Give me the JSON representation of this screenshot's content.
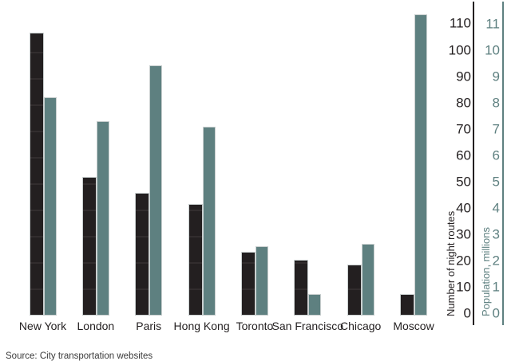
{
  "chart_data": {
    "type": "bar",
    "title": "",
    "categories": [
      "New York",
      "London",
      "Paris",
      "Hong Kong",
      "Toronto",
      "San Francisco",
      "Chicago",
      "Moscow"
    ],
    "series": [
      {
        "name": "Number of night routes",
        "axis": "routes",
        "color": "#231f20",
        "values": [
          106,
          52,
          46,
          42,
          24,
          21,
          19,
          8
        ]
      },
      {
        "name": "Population, millions",
        "axis": "population",
        "color": "#5e8080",
        "values": [
          8.2,
          7.3,
          9.4,
          7.1,
          2.6,
          0.8,
          2.7,
          11.3
        ]
      }
    ],
    "axes": {
      "routes": {
        "title": "Number of night routes",
        "side": "right",
        "color": "#231f20",
        "min": 0,
        "max": 110,
        "step": 10,
        "tick_labels": [
          "0",
          "10",
          "20",
          "30",
          "40",
          "50",
          "60",
          "70",
          "80",
          "90",
          "100",
          "110"
        ]
      },
      "population": {
        "title": "Population, millions",
        "side": "right",
        "color": "#5e8080",
        "min": 0,
        "max": 11,
        "step": 1,
        "tick_labels": [
          "0",
          "1",
          "2",
          "3",
          "4",
          "5",
          "6",
          "7",
          "8",
          "9",
          "10",
          "11"
        ]
      }
    },
    "grid": "off",
    "legend": "none",
    "source_note": "Source: City transportation websites"
  }
}
